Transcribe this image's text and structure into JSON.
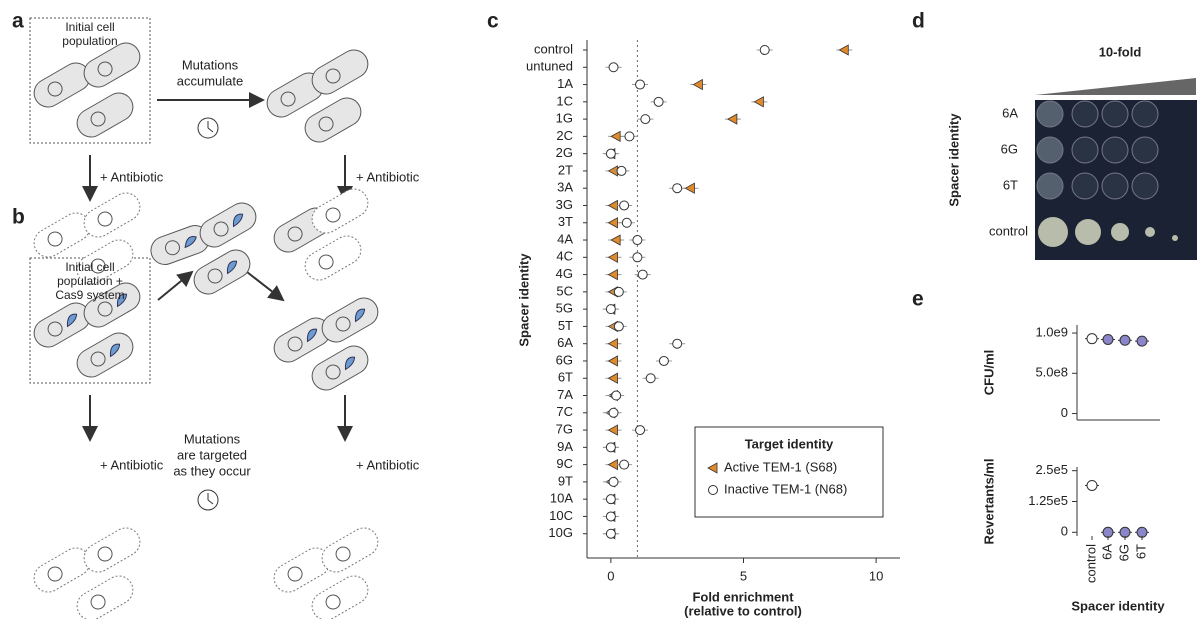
{
  "panels": {
    "a": {
      "label": "a",
      "box": [
        "Initial cell",
        "population"
      ],
      "arrow": [
        "Mutations",
        "accumulate"
      ],
      "left": "+ Antibiotic",
      "right": "+ Antibiotic"
    },
    "b": {
      "label": "b",
      "box": [
        "Initial cell",
        "population +",
        "Cas9 system"
      ],
      "arrow": [
        "Mutations",
        "are targeted",
        "as they occur"
      ],
      "left": "+ Antibiotic",
      "right": "+ Antibiotic"
    },
    "d": {
      "label": "d",
      "title": "10-fold",
      "ylabel": "Spacer identity",
      "rows": [
        "6A",
        "6G",
        "6T",
        "control"
      ]
    },
    "e": {
      "label": "e"
    }
  },
  "chart_data": [
    {
      "type": "dot",
      "panel": "c",
      "ylabel": "Spacer identity",
      "xlabel": [
        "Fold enrichment",
        "(relative to control)"
      ],
      "categories": [
        "control",
        "untuned",
        "1A",
        "1C",
        "1G",
        "2C",
        "2G",
        "2T",
        "3A",
        "3G",
        "3T",
        "4A",
        "4C",
        "4G",
        "5C",
        "5G",
        "5T",
        "6A",
        "6G",
        "6T",
        "7A",
        "7C",
        "7G",
        "9A",
        "9C",
        "9T",
        "10A",
        "10C",
        "10G"
      ],
      "series": [
        {
          "name": "Active TEM-1 (S68)",
          "color": "#e08a2c",
          "marker": "triangle",
          "values": [
            8.8,
            null,
            3.3,
            5.6,
            4.6,
            0.2,
            0,
            0.1,
            3.0,
            0.1,
            0.1,
            0.2,
            0.1,
            0.1,
            0.1,
            0,
            0.1,
            0.1,
            0.1,
            0.1,
            0.1,
            0,
            0.1,
            0,
            0.1,
            0,
            0,
            0,
            0
          ]
        },
        {
          "name": "Inactive TEM-1 (N68)",
          "color": "#ffffff",
          "marker": "circle",
          "values": [
            5.8,
            0.1,
            1.1,
            1.8,
            1.3,
            0.7,
            0,
            0.4,
            2.5,
            0.5,
            0.6,
            1.0,
            1.0,
            1.2,
            0.3,
            0,
            0.3,
            2.5,
            2.0,
            1.5,
            0.2,
            0.1,
            1.1,
            0,
            0.5,
            0.1,
            0,
            0,
            0
          ]
        }
      ],
      "xlim": [
        -0.9,
        10.9
      ],
      "xticks": [
        0,
        5,
        10
      ],
      "reference_x": 1,
      "legend_title": "Target identity"
    },
    {
      "type": "strip",
      "ylabel": "CFU/ml",
      "values": [
        930000000,
        920000000,
        910000000,
        900000000
      ],
      "colors": [
        "#ffffff",
        "#8b85c9",
        "#8b85c9",
        "#8b85c9"
      ],
      "ylim": [
        -80000000,
        1100000000
      ],
      "yticks": [
        0,
        {
          "value": 500000000,
          "label": "5.0e8"
        },
        {
          "value": 1000000000,
          "label": "1.0e9"
        }
      ]
    },
    {
      "type": "strip",
      "ylabel": "Revertants/ml",
      "xlabel": "Spacer identity",
      "categories": [
        "control",
        "6A",
        "6G",
        "6T"
      ],
      "values": [
        190000,
        0,
        0,
        0
      ],
      "colors": [
        "#ffffff",
        "#8b85c9",
        "#8b85c9",
        "#8b85c9"
      ],
      "ylim": [
        -15000,
        265000
      ],
      "yticks": [
        0,
        {
          "value": 125000,
          "label": "1.25e5"
        },
        {
          "value": 250000,
          "label": "2.5e5"
        }
      ]
    }
  ]
}
